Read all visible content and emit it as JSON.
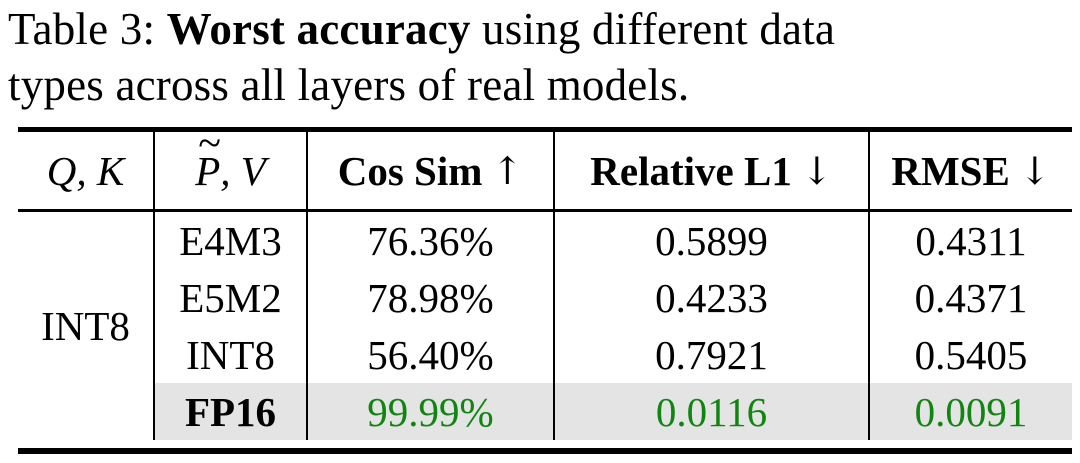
{
  "caption": {
    "prefix": "Table 3: ",
    "bold": "Worst accuracy",
    "suffix": " using different data",
    "line2": "types across all layers of real models."
  },
  "table": {
    "header": {
      "col1": "Q, K",
      "col2": {
        "tilde": "~",
        "base": "P",
        "suffix": ", V"
      },
      "col3": {
        "label": "Cos Sim",
        "arrow": "↑"
      },
      "col4": {
        "label": "Relative L1",
        "arrow": "↓"
      },
      "col5": {
        "label": "RMSE",
        "arrow": "↓"
      }
    },
    "rowspan_label": "INT8",
    "rows": [
      {
        "dtype": "E4M3",
        "cos_sim": "76.36%",
        "rel_l1": "0.5899",
        "rmse": "0.4311"
      },
      {
        "dtype": "E5M2",
        "cos_sim": "78.98%",
        "rel_l1": "0.4233",
        "rmse": "0.4371"
      },
      {
        "dtype": "INT8",
        "cos_sim": "56.40%",
        "rel_l1": "0.7921",
        "rmse": "0.5405"
      },
      {
        "dtype": "FP16",
        "cos_sim": "99.99%",
        "rel_l1": "0.0116",
        "rmse": "0.0091"
      }
    ],
    "colors": {
      "highlight_bg": "#e4e4e4",
      "highlight_text_green": "#118511",
      "rule_color": "#000000"
    }
  }
}
